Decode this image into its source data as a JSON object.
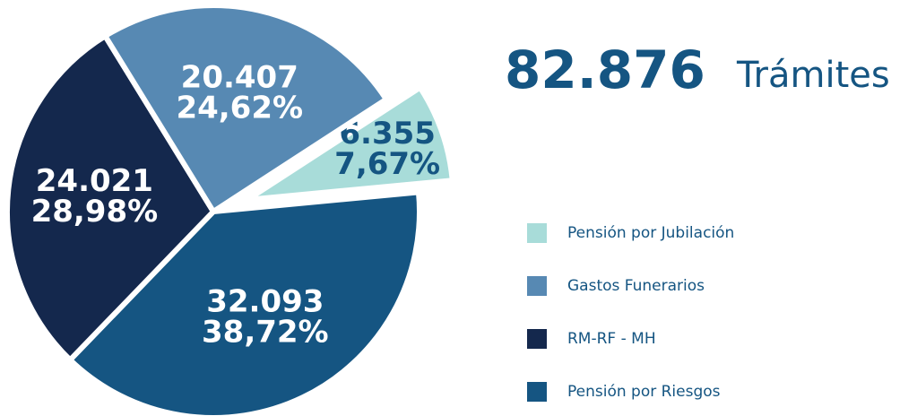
{
  "chart_data": {
    "type": "pie",
    "total": 82876,
    "total_label": "82.876",
    "title": "Trámites",
    "categories": [
      "Pensión por Jubilación",
      "Gastos Funerarios",
      "RM-RF - MH",
      "Pensión por Riesgos"
    ],
    "values": [
      6355,
      20407,
      24021,
      32093
    ],
    "value_labels": [
      "6.355",
      "20.407",
      "24.021",
      "32.093"
    ],
    "percentages": [
      7.67,
      24.62,
      28.98,
      38.72
    ],
    "percentage_labels": [
      "7,67%",
      "24,62%",
      "28,98%",
      "38,72%"
    ],
    "colors": [
      "#a8dcd9",
      "#5789b3",
      "#14284d",
      "#155582"
    ]
  }
}
